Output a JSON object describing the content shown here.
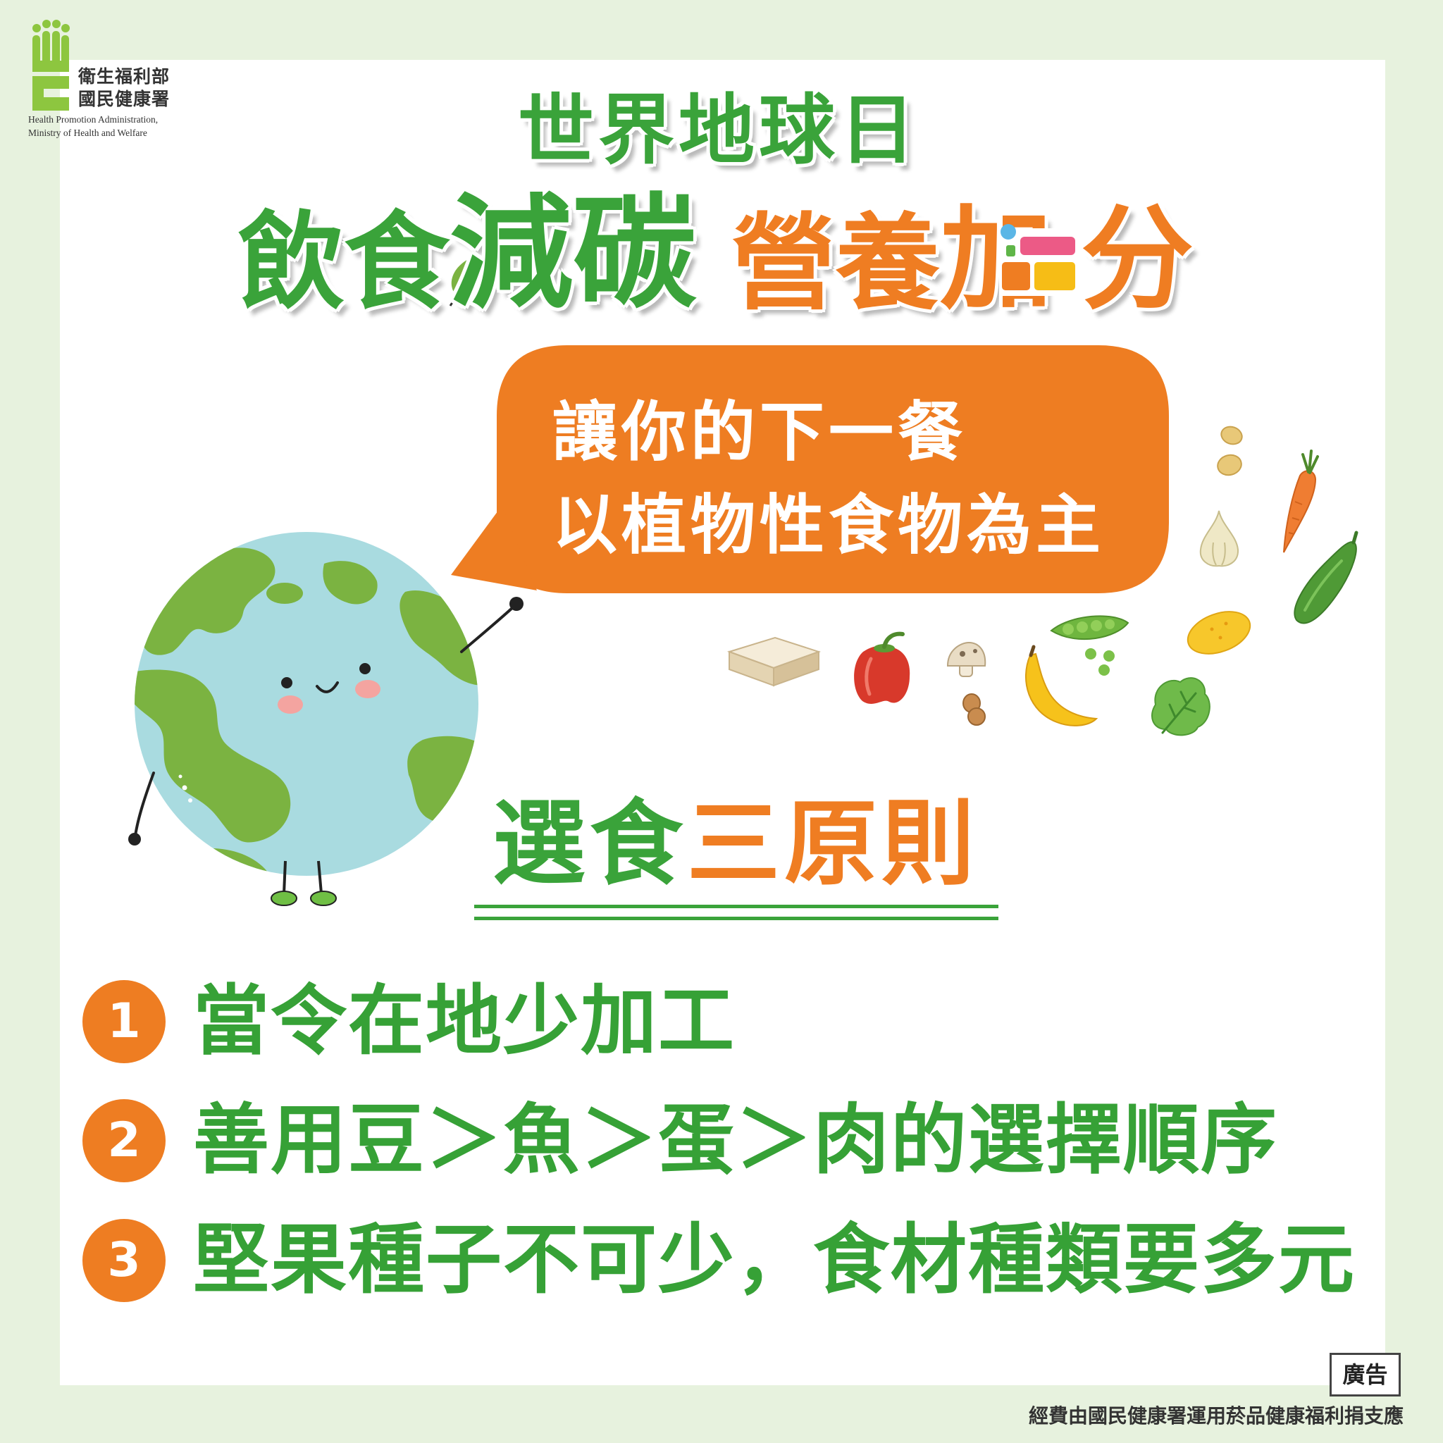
{
  "logo": {
    "org_zh_1": "衛生福利部",
    "org_zh_2": "國民健康署",
    "org_en_1": "Health Promotion Administration,",
    "org_en_2": "Ministry of Health and Welfare",
    "icon": "hpa-logo-icon"
  },
  "title": {
    "line1": "世界地球日",
    "line2": {
      "part1": "飲食",
      "part2": "減碳",
      "part3": "營養",
      "part4": "加",
      "part5": "分"
    }
  },
  "bubble": {
    "line1": "讓你的下一餐",
    "line2": "以植物性食物為主"
  },
  "principles": {
    "heading_green": "選食",
    "heading_orange": "三原則",
    "items": [
      {
        "number": "1",
        "text": "當令在地少加工"
      },
      {
        "number": "2",
        "text": "善用豆＞魚＞蛋＞肉的選擇順序"
      },
      {
        "number": "3",
        "text": "堅果種子不可少，食材種類要多元"
      }
    ]
  },
  "ad_label": "廣告",
  "footer": "經費由國民健康署運用菸品健康福利捐支應",
  "colors": {
    "background": "#e7f2de",
    "panel": "#ffffff",
    "green": "#3aa33a",
    "orange": "#ee7d22",
    "earth_ocean": "#a9dbe0",
    "earth_land": "#7bb341"
  },
  "illustrations": [
    "earth-character-icon",
    "tofu-icon",
    "red-pepper-icon",
    "mushroom-icon",
    "peanut-icon",
    "banana-icon",
    "pea-pod-icon",
    "lemon-icon",
    "lettuce-icon",
    "cucumber-icon",
    "garlic-icon",
    "carrot-icon",
    "beans-icon",
    "leaf-icon"
  ]
}
